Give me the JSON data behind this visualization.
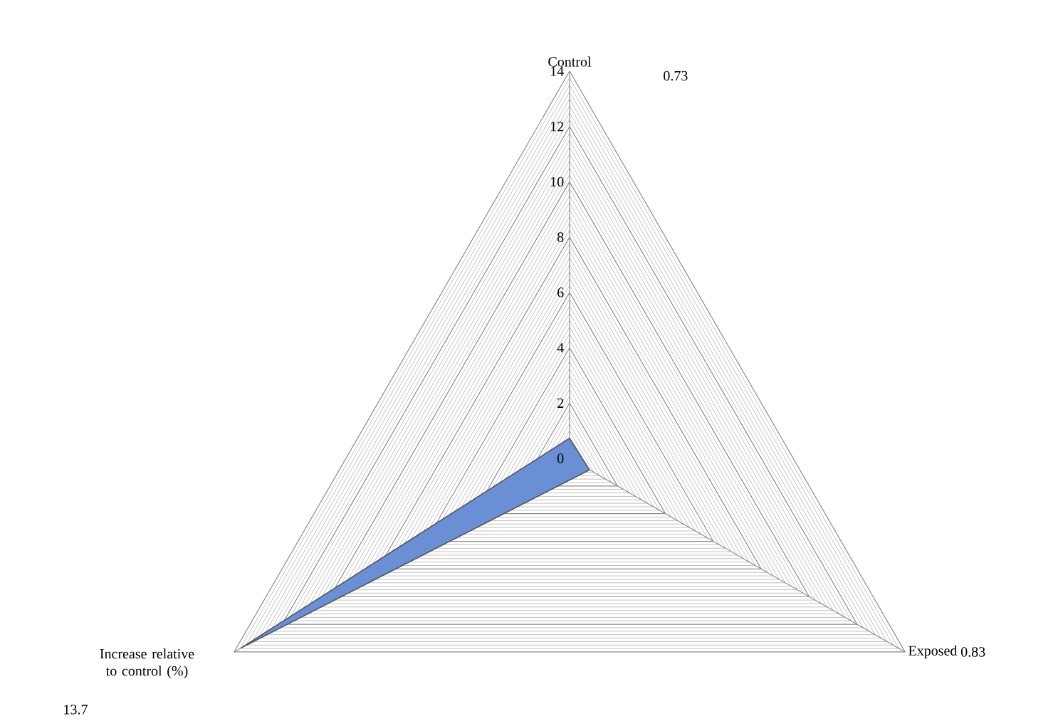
{
  "chart_data": {
    "type": "radar",
    "categories": [
      "Control",
      "Exposed",
      "Increase relative to control (%)"
    ],
    "series": [
      {
        "color": "#6a8fd4",
        "values": [
          0.73,
          0.83,
          13.7
        ]
      }
    ],
    "ylim": [
      0,
      14
    ],
    "yticks": [
      0,
      2,
      4,
      6,
      8,
      10,
      12,
      14
    ],
    "grid": true,
    "annotations": [
      "0.73",
      "0.83",
      "13.7"
    ]
  }
}
